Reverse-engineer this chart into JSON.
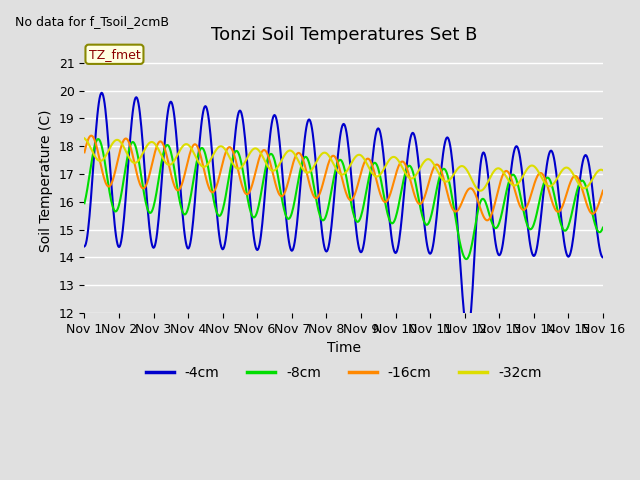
{
  "title": "Tonzi Soil Temperatures Set B",
  "xlabel": "Time",
  "ylabel": "Soil Temperature (C)",
  "no_data_text": "No data for f_Tsoil_2cmB",
  "legend_label_text": "TZ_fmet",
  "ylim": [
    12.0,
    21.5
  ],
  "yticks": [
    12.0,
    13.0,
    14.0,
    15.0,
    16.0,
    17.0,
    18.0,
    19.0,
    20.0,
    21.0
  ],
  "xtick_labels": [
    "Nov 1",
    "Nov 2",
    "Nov 3",
    "Nov 4",
    "Nov 5",
    "Nov 6",
    "Nov 7",
    "Nov 8",
    "Nov 9",
    "Nov 10",
    "Nov 11",
    "Nov 12",
    "Nov 13",
    "Nov 14",
    "Nov 15",
    "Nov 16"
  ],
  "colors": {
    "4cm": "#0000cc",
    "8cm": "#00dd00",
    "16cm": "#ff8800",
    "32cm": "#dddd00"
  },
  "legend_entries": [
    "-4cm",
    "-8cm",
    "-16cm",
    "-32cm"
  ],
  "background_color": "#e0e0e0",
  "plot_bg_color": "#e0e0e0",
  "title_fontsize": 13,
  "axis_fontsize": 10,
  "tick_fontsize": 9,
  "linewidth": 1.5
}
